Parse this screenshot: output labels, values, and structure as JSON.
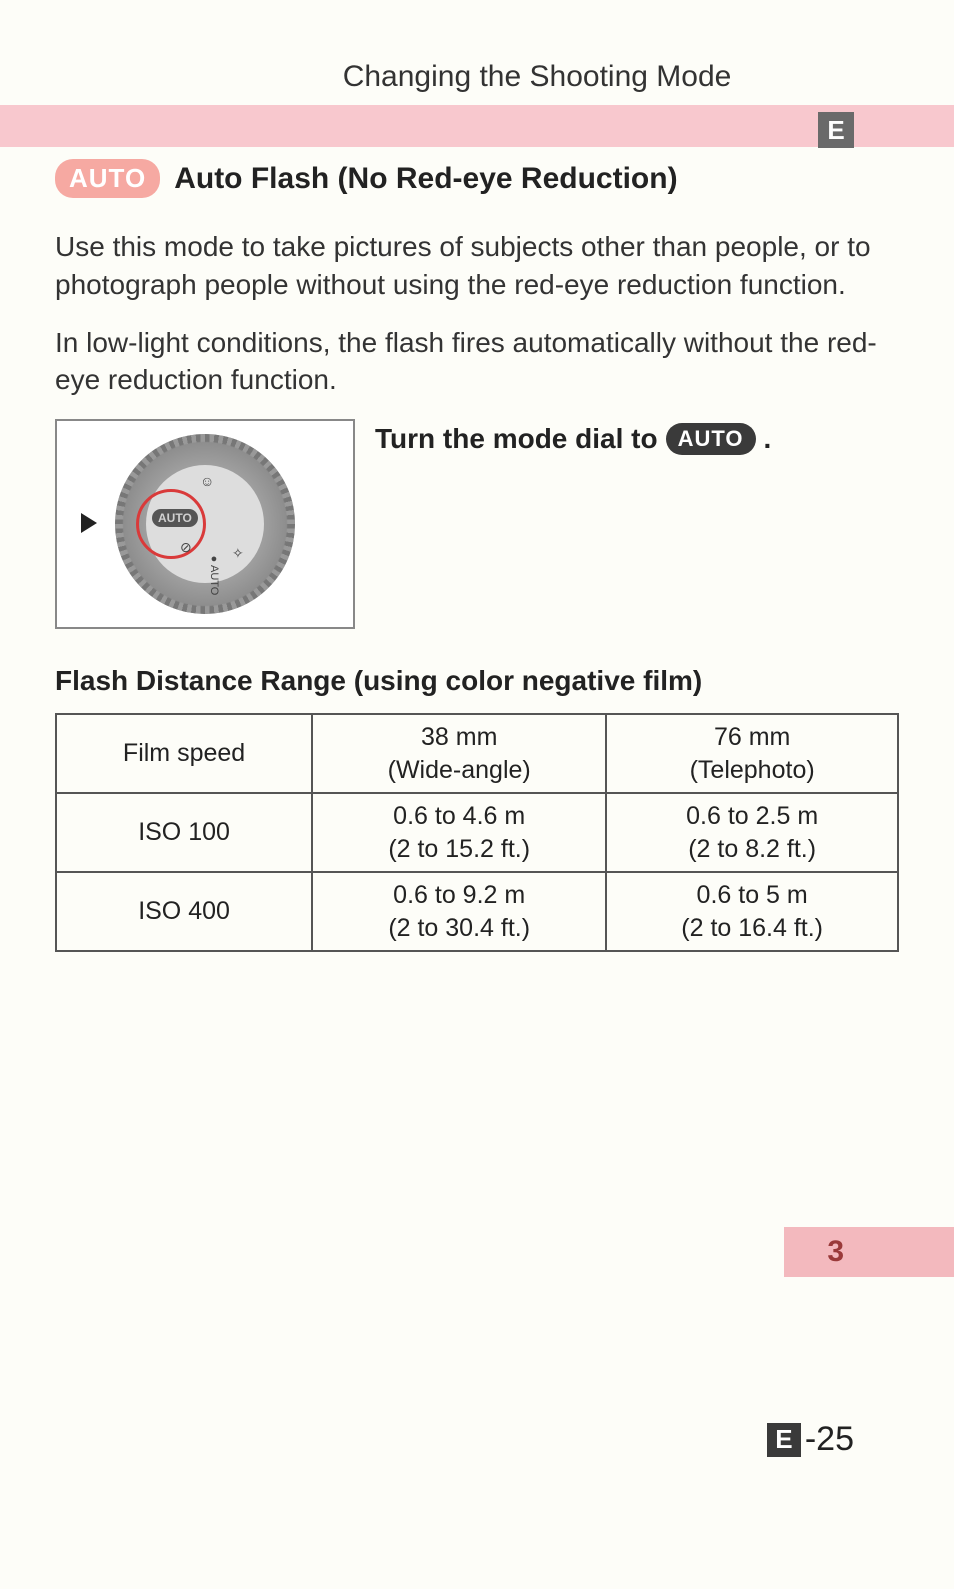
{
  "header": {
    "chapter_title": "Changing the Shooting Mode",
    "section_badge": "E"
  },
  "section": {
    "pill_label": "AUTO",
    "heading": "Auto Flash (No Red-eye Reduction)",
    "paragraph1": "Use this mode to take pictures of subjects other than people, or to photograph people without using the red-eye reduction function.",
    "paragraph2": "In low-light conditions, the flash fires automatically without the red-eye reduction function."
  },
  "instruction": {
    "text_before": "Turn the mode dial to",
    "pill_label": "AUTO",
    "text_after": "."
  },
  "dial": {
    "auto_label": "AUTO"
  },
  "table": {
    "title": "Flash Distance Range (using color negative film)",
    "columns": [
      "Film speed",
      "38 mm\n(Wide-angle)",
      "76 mm\n(Telephoto)"
    ],
    "rows": [
      {
        "label": "ISO 100",
        "wide": "0.6 to 4.6 m\n(2 to 15.2 ft.)",
        "tele": "0.6 to 2.5 m\n(2 to 8.2 ft.)"
      },
      {
        "label": "ISO 400",
        "wide": "0.6 to 9.2 m\n(2 to 30.4 ft.)",
        "tele": "0.6 to 5 m\n(2 to 16.4 ft.)"
      }
    ]
  },
  "side_tab": "3",
  "page_number": {
    "prefix": "E",
    "num": "-25"
  },
  "colors": {
    "pink_bar": "#f8c8ce",
    "pill_light": "#f6a9a2",
    "pill_dark": "#3a3a3a",
    "badge_bg": "#6a6a6a",
    "table_border": "#555555",
    "side_tab_bg": "#f3b9be",
    "side_tab_text": "#9a3a3a"
  }
}
